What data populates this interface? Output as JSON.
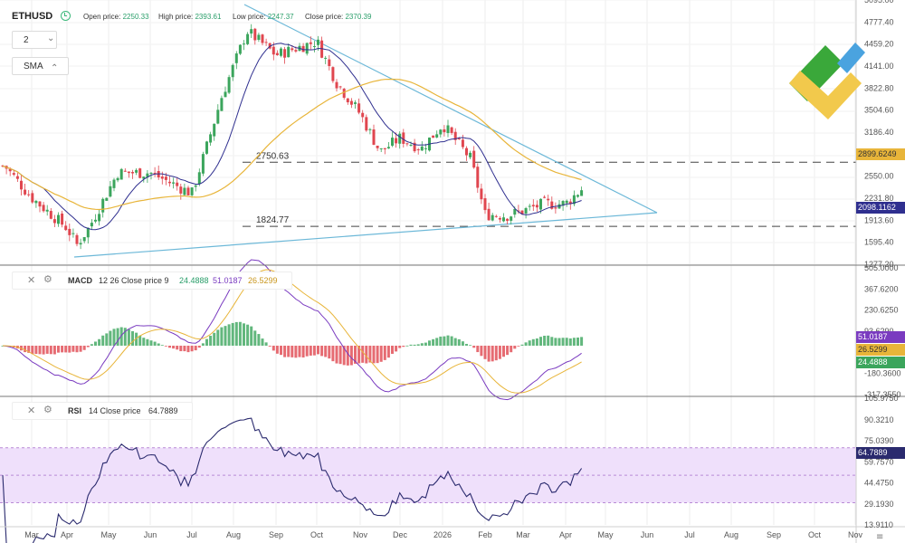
{
  "header": {
    "symbol": "ETHUSD",
    "open_label": "Open price:",
    "open_value": "2250.33",
    "high_label": "High price:",
    "high_value": "2393.61",
    "low_label": "Low price:",
    "low_value": "2247.37",
    "close_label": "Close price:",
    "close_value": "2370.39",
    "timeframe": "2",
    "indicator": "SMA"
  },
  "macd": {
    "name": "MACD",
    "params": "12 26 Close price 9",
    "v1": "24.4888",
    "v2": "51.0187",
    "v3": "26.5299"
  },
  "rsi": {
    "name": "RSI",
    "params": "14 Close price",
    "value": "64.7889"
  },
  "levels": {
    "upper": "2750.63",
    "lower": "1824.77"
  },
  "price_labels": {
    "sma_long": "2899.6249",
    "sma_short": "2098.1162",
    "macd_purple": "51.0187",
    "macd_orange": "26.5299",
    "macd_green": "24.4888",
    "rsi": "64.7889"
  },
  "colors": {
    "up": "#3ba55c",
    "down": "#e0464f",
    "sma_short": "#2f2f8f",
    "sma_long": "#e8b53a",
    "trendline": "#6cb8d8",
    "macd_line": "#7a3bc0",
    "signal_line": "#e8b53a",
    "rsi_line": "#2a2a6e",
    "rsi_band": "#efe0fb",
    "logo_green": "#3aa83a",
    "logo_yellow": "#f2c94c",
    "logo_blue": "#4aa3df"
  },
  "chart_data": [
    {
      "type": "candlestick",
      "title": "ETHUSD",
      "x_tick_labels": [
        "Mar",
        "Apr",
        "May",
        "Jun",
        "Jul",
        "Aug",
        "Sep",
        "Oct",
        "Nov",
        "Dec",
        "2026",
        "Feb",
        "Mar",
        "Apr",
        "May",
        "Jun",
        "Jul",
        "Aug",
        "Sep",
        "Oct",
        "Nov"
      ],
      "y_tick_labels": [
        "5095.00",
        "4777.40",
        "4459.20",
        "4141.00",
        "3822.80",
        "3504.60",
        "3186.40",
        "2868.20",
        "2550.00",
        "2231.80",
        "1913.60",
        "1595.40",
        "1277.20"
      ],
      "ylim": [
        1277.2,
        5095
      ],
      "close_sample": [
        {
          "x": "Mar",
          "y": 2700
        },
        {
          "x": "Mar (mid)",
          "y": 2240
        },
        {
          "x": "Apr",
          "y": 1800
        },
        {
          "x": "Apr (mid)",
          "y": 1560
        },
        {
          "x": "May",
          "y": 1800
        },
        {
          "x": "May (mid)",
          "y": 2600
        },
        {
          "x": "Jun",
          "y": 2600
        },
        {
          "x": "Jul",
          "y": 2300
        },
        {
          "x": "Jul (mid)",
          "y": 3000
        },
        {
          "x": "Aug",
          "y": 3700
        },
        {
          "x": "Aug (mid)",
          "y": 4650
        },
        {
          "x": "Sep",
          "y": 4300
        },
        {
          "x": "Oct",
          "y": 4500
        },
        {
          "x": "Oct (mid)",
          "y": 3900
        },
        {
          "x": "Nov",
          "y": 3450
        },
        {
          "x": "Nov (mid)",
          "y": 2900
        },
        {
          "x": "Dec",
          "y": 3100
        },
        {
          "x": "Dec (mid)",
          "y": 2950
        },
        {
          "x": "2026",
          "y": 3300
        },
        {
          "x": "Jan (end)",
          "y": 2800
        },
        {
          "x": "Feb",
          "y": 2000
        },
        {
          "x": "Feb (mid)",
          "y": 1980
        },
        {
          "x": "Mar",
          "y": 2050
        },
        {
          "x": "Mar (mid)",
          "y": 2150
        },
        {
          "x": "Apr",
          "y": 2150
        },
        {
          "x": "Apr (mid)",
          "y": 2370
        }
      ],
      "series": [
        {
          "name": "SMA (short)",
          "last": 2098.1162
        },
        {
          "name": "SMA (long)",
          "last": 2899.6249
        }
      ],
      "horizontal_levels": [
        2750.63,
        1824.77
      ]
    },
    {
      "type": "line",
      "title": "MACD 12 26 Close price 9",
      "y_tick_labels": [
        "505.0000",
        "367.6200",
        "230.6250",
        "93.6290",
        "-43.3650",
        "-180.3600",
        "-317.3550"
      ],
      "series": [
        {
          "name": "MACD",
          "last": 51.0187
        },
        {
          "name": "Signal",
          "last": 26.5299
        },
        {
          "name": "Histogram",
          "last": 24.4888
        }
      ]
    },
    {
      "type": "line",
      "title": "RSI 14 Close price",
      "y_tick_labels": [
        "105.9750",
        "90.3210",
        "75.0390",
        "59.7570",
        "44.4750",
        "29.1930",
        "13.9110"
      ],
      "overbought": 70,
      "oversold": 30,
      "series": [
        {
          "name": "RSI",
          "last": 64.7889
        }
      ]
    }
  ]
}
